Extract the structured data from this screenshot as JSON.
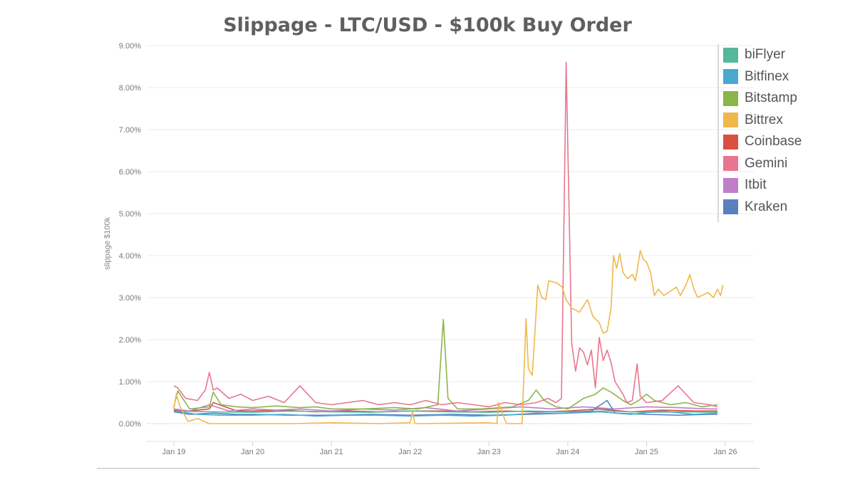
{
  "chart_data": {
    "type": "line",
    "title": "Slippage - LTC/USD - $100k Buy Order",
    "xlabel": "",
    "ylabel": "slippage $100k",
    "ylim": [
      0,
      9
    ],
    "yticks": [
      0,
      1,
      2,
      3,
      4,
      5,
      6,
      7,
      8,
      9
    ],
    "ytick_labels": [
      "0.00%",
      "1.00%",
      "2.00%",
      "3.00%",
      "4.00%",
      "5.00%",
      "6.00%",
      "7.00%",
      "8.00%",
      "9.00%"
    ],
    "xlim": [
      19,
      26
    ],
    "xticks": [
      19,
      20,
      21,
      22,
      23,
      24,
      25,
      26
    ],
    "xtick_labels": [
      "Jan 19",
      "Jan 20",
      "Jan 21",
      "Jan 22",
      "Jan 23",
      "Jan 24",
      "Jan 25",
      "Jan 26"
    ],
    "legend_position": "top-right",
    "series": [
      {
        "name": "biFlyer",
        "color": "#55b89a",
        "x": [
          19.0,
          19.5,
          20.0,
          20.5,
          21.0,
          21.5,
          22.0,
          22.5,
          23.0,
          23.5,
          24.0,
          24.5,
          25.0,
          25.5,
          25.9
        ],
        "values": [
          0.3,
          0.28,
          0.27,
          0.3,
          0.28,
          0.27,
          0.3,
          0.28,
          0.27,
          0.3,
          0.28,
          0.3,
          0.27,
          0.28,
          0.27
        ]
      },
      {
        "name": "Bitfinex",
        "color": "#4aa8d0",
        "x": [
          19.0,
          19.3,
          19.6,
          20.0,
          20.4,
          20.8,
          21.2,
          21.6,
          22.0,
          22.4,
          22.8,
          23.2,
          23.6,
          24.0,
          24.4,
          24.8,
          25.2,
          25.6,
          25.9
        ],
        "values": [
          0.3,
          0.22,
          0.2,
          0.2,
          0.22,
          0.18,
          0.2,
          0.2,
          0.18,
          0.2,
          0.18,
          0.2,
          0.25,
          0.25,
          0.28,
          0.22,
          0.3,
          0.22,
          0.25
        ]
      },
      {
        "name": "Bitstamp",
        "color": "#8ab54a",
        "x": [
          19.0,
          19.05,
          19.2,
          19.45,
          19.5,
          19.6,
          19.8,
          20.0,
          20.3,
          20.6,
          20.8,
          21.0,
          21.4,
          21.8,
          22.1,
          22.35,
          22.42,
          22.48,
          22.6,
          22.9,
          23.3,
          23.5,
          23.6,
          23.7,
          23.85,
          24.0,
          24.2,
          24.35,
          24.45,
          24.55,
          24.7,
          24.8,
          24.9,
          25.0,
          25.1,
          25.3,
          25.5,
          25.7,
          25.9
        ],
        "values": [
          0.4,
          0.78,
          0.35,
          0.4,
          0.75,
          0.45,
          0.4,
          0.38,
          0.42,
          0.38,
          0.4,
          0.35,
          0.35,
          0.38,
          0.35,
          0.45,
          2.48,
          0.6,
          0.35,
          0.35,
          0.4,
          0.55,
          0.8,
          0.55,
          0.4,
          0.35,
          0.6,
          0.7,
          0.85,
          0.75,
          0.55,
          0.45,
          0.55,
          0.7,
          0.55,
          0.45,
          0.5,
          0.4,
          0.45
        ]
      },
      {
        "name": "Bittrex",
        "color": "#f0b84a",
        "x": [
          19.0,
          19.03,
          19.08,
          19.18,
          19.3,
          19.45,
          19.9,
          20.5,
          21.0,
          21.6,
          22.0,
          22.03,
          22.06,
          22.15,
          23.0,
          23.1,
          23.12,
          23.22,
          23.35,
          23.42,
          23.47,
          23.5,
          23.55,
          23.62,
          23.67,
          23.72,
          23.76,
          23.86,
          23.93,
          23.98,
          24.05,
          24.15,
          24.25,
          24.32,
          24.4,
          24.45,
          24.5,
          24.55,
          24.58,
          24.62,
          24.66,
          24.7,
          24.76,
          24.82,
          24.86,
          24.92,
          24.96,
          25.0,
          25.05,
          25.1,
          25.15,
          25.22,
          25.3,
          25.38,
          25.43,
          25.5,
          25.55,
          25.6,
          25.65,
          25.7,
          25.78,
          25.85,
          25.9,
          25.94,
          25.97
        ],
        "values": [
          0.35,
          0.7,
          0.4,
          0.05,
          0.12,
          0.0,
          0.0,
          0.0,
          0.02,
          0.0,
          0.02,
          0.28,
          0.0,
          0.0,
          0.02,
          0.0,
          0.5,
          0.0,
          0.0,
          0.0,
          2.5,
          1.3,
          1.15,
          3.3,
          3.0,
          2.95,
          3.4,
          3.35,
          3.25,
          2.95,
          2.75,
          2.65,
          2.95,
          2.55,
          2.4,
          2.15,
          2.2,
          2.75,
          4.0,
          3.7,
          4.05,
          3.6,
          3.45,
          3.55,
          3.4,
          4.12,
          3.9,
          3.85,
          3.6,
          3.05,
          3.2,
          3.05,
          3.15,
          3.25,
          3.05,
          3.3,
          3.55,
          3.2,
          3.0,
          3.05,
          3.12,
          3.0,
          3.2,
          3.05,
          3.3
        ]
      },
      {
        "name": "Coinbase",
        "color": "#d9503f",
        "x": [
          19.0,
          19.2,
          19.45,
          19.5,
          19.8,
          20.0,
          20.4,
          20.8,
          21.2,
          21.6,
          22.0,
          22.4,
          22.8,
          23.2,
          23.6,
          24.0,
          24.4,
          24.8,
          25.2,
          25.6,
          25.9
        ],
        "values": [
          0.32,
          0.3,
          0.35,
          0.5,
          0.3,
          0.3,
          0.32,
          0.28,
          0.3,
          0.28,
          0.3,
          0.3,
          0.28,
          0.3,
          0.28,
          0.3,
          0.35,
          0.28,
          0.32,
          0.3,
          0.3
        ]
      },
      {
        "name": "Gemini",
        "color": "#e8768f",
        "x": [
          19.0,
          19.05,
          19.15,
          19.3,
          19.4,
          19.45,
          19.5,
          19.55,
          19.7,
          19.85,
          20.0,
          20.2,
          20.4,
          20.6,
          20.8,
          21.0,
          21.2,
          21.4,
          21.6,
          21.8,
          22.0,
          22.2,
          22.4,
          22.6,
          22.8,
          23.0,
          23.2,
          23.4,
          23.6,
          23.75,
          23.85,
          23.92,
          23.95,
          23.98,
          24.05,
          24.1,
          24.15,
          24.2,
          24.25,
          24.3,
          24.35,
          24.4,
          24.45,
          24.5,
          24.55,
          24.6,
          24.7,
          24.75,
          24.82,
          24.88,
          24.92,
          25.0,
          25.2,
          25.4,
          25.6,
          25.8,
          25.9
        ],
        "values": [
          0.9,
          0.85,
          0.6,
          0.55,
          0.8,
          1.22,
          0.8,
          0.85,
          0.6,
          0.7,
          0.55,
          0.65,
          0.5,
          0.9,
          0.5,
          0.45,
          0.5,
          0.55,
          0.45,
          0.5,
          0.45,
          0.55,
          0.45,
          0.5,
          0.45,
          0.4,
          0.5,
          0.45,
          0.5,
          0.6,
          0.5,
          0.6,
          4.5,
          8.6,
          1.9,
          1.25,
          1.8,
          1.7,
          1.4,
          1.75,
          0.85,
          2.05,
          1.5,
          1.75,
          1.45,
          1.0,
          0.7,
          0.5,
          0.55,
          1.42,
          0.65,
          0.5,
          0.55,
          0.9,
          0.5,
          0.45,
          0.4
        ]
      },
      {
        "name": "Itbit",
        "color": "#c07ec8",
        "x": [
          19.0,
          19.2,
          19.45,
          19.7,
          20.0,
          20.3,
          20.6,
          21.0,
          21.4,
          21.8,
          22.2,
          22.6,
          23.0,
          23.4,
          23.8,
          24.2,
          24.6,
          25.0,
          25.4,
          25.8,
          25.9
        ],
        "values": [
          0.35,
          0.3,
          0.45,
          0.3,
          0.35,
          0.32,
          0.35,
          0.3,
          0.35,
          0.32,
          0.38,
          0.3,
          0.35,
          0.4,
          0.35,
          0.4,
          0.35,
          0.4,
          0.38,
          0.35,
          0.35
        ]
      },
      {
        "name": "Kraken",
        "color": "#5a80c0",
        "x": [
          19.0,
          19.2,
          19.5,
          19.8,
          20.0,
          20.5,
          21.0,
          21.5,
          22.0,
          22.5,
          23.0,
          23.5,
          24.0,
          24.3,
          24.5,
          24.6,
          25.0,
          25.4,
          25.8,
          25.9
        ],
        "values": [
          0.28,
          0.22,
          0.25,
          0.22,
          0.22,
          0.2,
          0.2,
          0.22,
          0.2,
          0.22,
          0.2,
          0.22,
          0.25,
          0.3,
          0.55,
          0.25,
          0.22,
          0.2,
          0.22,
          0.22
        ]
      }
    ]
  }
}
